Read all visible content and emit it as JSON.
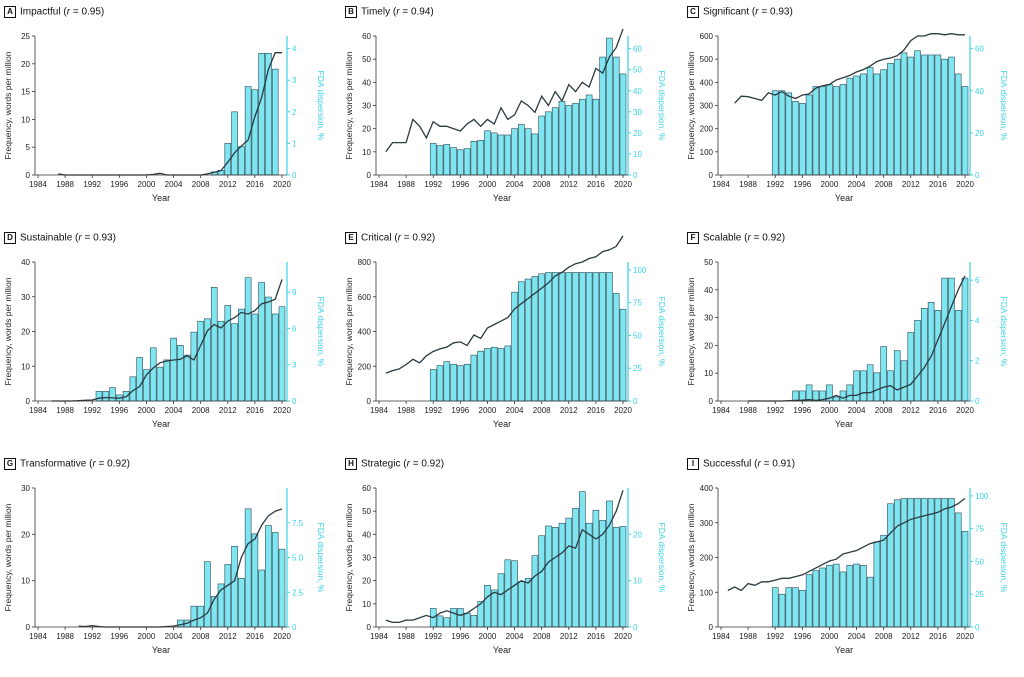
{
  "years": [
    1984,
    1985,
    1986,
    1987,
    1988,
    1989,
    1990,
    1991,
    1992,
    1993,
    1994,
    1995,
    1996,
    1997,
    1998,
    1999,
    2000,
    2001,
    2002,
    2003,
    2004,
    2005,
    2006,
    2007,
    2008,
    2009,
    2010,
    2011,
    2012,
    2013,
    2014,
    2015,
    2016,
    2017,
    2018,
    2019,
    2020
  ],
  "xticks": [
    1984,
    1988,
    1992,
    1996,
    2000,
    2004,
    2008,
    2012,
    2016,
    2020
  ],
  "xlabel": "Year",
  "ylabel": "Frequency, words per million",
  "y2label": "FDA dispersion, %",
  "colors": {
    "bar_fill": "#7fe5f0",
    "bar_stroke": "#2a4a55",
    "line": "#2b3a40",
    "axis_right": "#38d3e6",
    "axis_left": "#333333"
  },
  "chart_data": [
    {
      "type": "bar+line",
      "letter": "A",
      "word": "Impactful",
      "r_prefix": "(",
      "r_symbol": "r",
      "r_text": " = 0.95)",
      "ylim": [
        0,
        25
      ],
      "yticks": [
        0,
        5,
        10,
        15,
        20,
        25
      ],
      "y2lim": [
        0,
        4.4
      ],
      "y2ticks": [
        "0",
        "1",
        "2",
        "3",
        "4"
      ],
      "y2tickvals": [
        0,
        1,
        2,
        3,
        4
      ],
      "freq": [
        null,
        null,
        null,
        0.2,
        0,
        0,
        0,
        0,
        0,
        0,
        0,
        0,
        0,
        0,
        0,
        0,
        0,
        0.1,
        0.3,
        0,
        0,
        0,
        0,
        0,
        0,
        0.2,
        0.5,
        0.8,
        2.3,
        4,
        5.2,
        6.3,
        10.5,
        14,
        19,
        22,
        22
      ],
      "dispersion": [
        null,
        null,
        null,
        null,
        null,
        null,
        null,
        null,
        null,
        null,
        null,
        null,
        null,
        null,
        null,
        null,
        null,
        null,
        null,
        null,
        null,
        null,
        null,
        null,
        null,
        null,
        0.1,
        0.15,
        1,
        2,
        0.9,
        2.8,
        2.7,
        3.85,
        3.85,
        3.35,
        null
      ]
    },
    {
      "type": "bar+line",
      "letter": "B",
      "word": "Timely",
      "r_prefix": "(",
      "r_symbol": "r",
      "r_text": " = 0.94)",
      "ylim": [
        0,
        60
      ],
      "yticks": [
        0,
        10,
        20,
        30,
        40,
        50,
        60
      ],
      "y2lim": [
        0,
        66
      ],
      "y2ticks": [
        "0",
        "10",
        "20",
        "30",
        "40",
        "50",
        "60"
      ],
      "y2tickvals": [
        0,
        10,
        20,
        30,
        40,
        50,
        60
      ],
      "freq": [
        null,
        10,
        14,
        14,
        14,
        24,
        21,
        16,
        23,
        21,
        21,
        20,
        19,
        22,
        24,
        21,
        24,
        22,
        29,
        24,
        26,
        32,
        30,
        27,
        34,
        30,
        36,
        32,
        39,
        36,
        40,
        38,
        46,
        44,
        51,
        55,
        63
      ],
      "dispersion": [
        null,
        null,
        null,
        null,
        null,
        null,
        null,
        null,
        15,
        14,
        14.5,
        13,
        12,
        12.5,
        16,
        16.5,
        21,
        20,
        19,
        19,
        22,
        24,
        22,
        19.5,
        28,
        30,
        32,
        35,
        33,
        34,
        36,
        38,
        36,
        56,
        65,
        56,
        48
      ]
    },
    {
      "type": "bar+line",
      "letter": "C",
      "word": "Significant",
      "r_prefix": "(",
      "r_symbol": "r",
      "r_text": " = 0.93)",
      "ylim": [
        0,
        600
      ],
      "yticks": [
        0,
        100,
        200,
        300,
        400,
        500,
        600
      ],
      "y2lim": [
        0,
        66
      ],
      "y2ticks": [
        "0",
        "20",
        "40",
        "60"
      ],
      "y2tickvals": [
        0,
        20,
        40,
        60
      ],
      "freq": [
        null,
        null,
        310,
        340,
        338,
        330,
        322,
        355,
        345,
        360,
        340,
        330,
        345,
        350,
        375,
        385,
        390,
        410,
        420,
        430,
        445,
        455,
        470,
        490,
        500,
        505,
        515,
        540,
        580,
        600,
        600,
        610,
        610,
        605,
        610,
        605,
        605
      ],
      "dispersion": [
        null,
        null,
        null,
        null,
        null,
        null,
        null,
        null,
        40,
        40,
        39,
        35,
        34,
        38,
        42,
        42,
        43,
        42,
        43,
        46,
        47,
        48,
        51,
        48,
        50,
        53,
        55,
        58,
        56,
        59,
        57,
        57,
        57,
        55,
        56,
        48,
        42
      ]
    },
    {
      "type": "bar+line",
      "letter": "D",
      "word": "Sustainable",
      "r_prefix": "(",
      "r_symbol": "r",
      "r_text": " = 0.93)",
      "ylim": [
        0,
        40
      ],
      "yticks": [
        0,
        10,
        20,
        30,
        40
      ],
      "y2lim": [
        0,
        11.5
      ],
      "y2ticks": [
        "0",
        "3",
        "6",
        "9"
      ],
      "y2tickvals": [
        0,
        3,
        6,
        9
      ],
      "freq": [
        null,
        null,
        0,
        0,
        0,
        0,
        0.1,
        0.2,
        0.3,
        0.8,
        1,
        0.9,
        0.8,
        1.2,
        3,
        4.2,
        7.5,
        9.5,
        11,
        11.5,
        11.8,
        12,
        13,
        11.8,
        16,
        20.2,
        22,
        21,
        23,
        24,
        25.5,
        25,
        26,
        28,
        28.5,
        29.3,
        35
      ],
      "dispersion": [
        null,
        null,
        null,
        null,
        null,
        null,
        null,
        null,
        null,
        0.8,
        0.8,
        1.1,
        0.5,
        0.8,
        2,
        3.6,
        2.6,
        4.4,
        2.8,
        3.4,
        5.2,
        4.6,
        3.8,
        5.7,
        6.6,
        6.8,
        9.4,
        6.6,
        7.9,
        6.4,
        7.6,
        10.2,
        7.2,
        9.8,
        8.6,
        7.2,
        7.8
      ]
    },
    {
      "type": "bar+line",
      "letter": "E",
      "word": "Critical",
      "r_prefix": "(",
      "r_symbol": "r",
      "r_text": " = 0.92)",
      "ylim": [
        0,
        800
      ],
      "yticks": [
        0,
        200,
        400,
        600,
        800
      ],
      "y2lim": [
        0,
        106
      ],
      "y2ticks": [
        "0",
        "25",
        "50",
        "75",
        "100"
      ],
      "y2tickvals": [
        0,
        25,
        50,
        75,
        100
      ],
      "freq": [
        null,
        160,
        175,
        185,
        210,
        240,
        220,
        260,
        285,
        300,
        310,
        335,
        340,
        320,
        380,
        360,
        420,
        440,
        460,
        480,
        530,
        560,
        590,
        620,
        650,
        680,
        720,
        740,
        770,
        790,
        800,
        820,
        830,
        860,
        870,
        890,
        950
      ],
      "dispersion": [
        null,
        null,
        null,
        null,
        null,
        null,
        null,
        null,
        24,
        27,
        30,
        28,
        27,
        28,
        35,
        38,
        40,
        41,
        40,
        42,
        83,
        91,
        93,
        95,
        97,
        98,
        98,
        98,
        98,
        98,
        98,
        98,
        98,
        98,
        98,
        82,
        70
      ]
    },
    {
      "type": "bar+line",
      "letter": "F",
      "word": "Scalable",
      "r_prefix": "(",
      "r_symbol": "r",
      "r_text": " = 0.92)",
      "ylim": [
        0,
        50
      ],
      "yticks": [
        0,
        10,
        20,
        30,
        40,
        50
      ],
      "y2lim": [
        0,
        6.9
      ],
      "y2ticks": [
        "0",
        "2",
        "4",
        "6"
      ],
      "y2tickvals": [
        0,
        2,
        4,
        6
      ],
      "freq": [
        null,
        null,
        null,
        null,
        0,
        0,
        0,
        0,
        0,
        0,
        0.1,
        0.2,
        0.3,
        0.5,
        0.2,
        0.5,
        1,
        2,
        1,
        2,
        2,
        3,
        3,
        4,
        5,
        5.5,
        4,
        5,
        6,
        9,
        12,
        16,
        22,
        28,
        34,
        40,
        45
      ],
      "dispersion": [
        null,
        null,
        null,
        null,
        null,
        null,
        null,
        null,
        null,
        null,
        null,
        0.5,
        0.5,
        0.8,
        0.5,
        0.5,
        0.8,
        0.2,
        0.5,
        0.8,
        1.5,
        1.5,
        1.8,
        1.4,
        2.7,
        1.5,
        2.5,
        2,
        3.4,
        4,
        4.6,
        4.9,
        4.5,
        6.1,
        6.1,
        4.5,
        6.1
      ]
    },
    {
      "type": "bar+line",
      "letter": "G",
      "word": "Transformative",
      "r_prefix": "(",
      "r_symbol": "r",
      "r_text": " = 0.92)",
      "ylim": [
        0,
        30
      ],
      "yticks": [
        0,
        10,
        20,
        30
      ],
      "y2lim": [
        0,
        10
      ],
      "y2ticks": [
        "0",
        "2.5",
        "5.0",
        "7.5"
      ],
      "y2tickvals": [
        0,
        2.5,
        5,
        7.5
      ],
      "freq": [
        null,
        null,
        null,
        null,
        null,
        null,
        0.2,
        0.1,
        0.3,
        0.1,
        0,
        0,
        0,
        0,
        0,
        0,
        0,
        0,
        0,
        0.1,
        0.2,
        0.5,
        0.8,
        1.5,
        2,
        3,
        6,
        8,
        9,
        10,
        15,
        18,
        19,
        22,
        24,
        25,
        25.5
      ],
      "dispersion": [
        null,
        null,
        null,
        null,
        null,
        null,
        null,
        null,
        null,
        null,
        null,
        null,
        null,
        null,
        null,
        null,
        null,
        null,
        null,
        null,
        null,
        0.5,
        0.5,
        1.5,
        1.5,
        4.7,
        2.2,
        3.1,
        4.5,
        5.8,
        3.5,
        8.5,
        6.7,
        4.1,
        7.3,
        6.8,
        5.6
      ]
    },
    {
      "type": "bar+line",
      "letter": "H",
      "word": "Strategic",
      "r_prefix": "(",
      "r_symbol": "r",
      "r_text": " = 0.92)",
      "ylim": [
        0,
        60
      ],
      "yticks": [
        0,
        10,
        20,
        30,
        40,
        50,
        60
      ],
      "y2lim": [
        0,
        30
      ],
      "y2ticks": [
        "0",
        "10",
        "20"
      ],
      "y2tickvals": [
        0,
        10,
        20
      ],
      "freq": [
        null,
        3,
        2,
        2,
        3,
        3,
        4,
        5,
        4,
        6,
        7,
        6,
        5,
        6,
        8,
        10,
        13,
        15,
        14,
        16,
        18,
        20,
        19,
        22,
        24,
        28,
        30,
        32,
        35,
        34,
        42,
        40,
        38,
        40,
        44,
        50,
        59
      ],
      "dispersion": [
        null,
        null,
        null,
        null,
        null,
        null,
        null,
        null,
        4,
        2.4,
        2,
        4,
        4,
        3,
        2.5,
        5.5,
        9,
        8,
        11.5,
        14.5,
        14.3,
        9.8,
        10.5,
        15.4,
        19.7,
        21.8,
        21.5,
        22.4,
        23.5,
        25.6,
        29.2,
        22.4,
        25.2,
        23,
        27.2,
        21.5,
        21.7
      ]
    },
    {
      "type": "bar+line",
      "letter": "I",
      "word": "Successful",
      "r_prefix": "(",
      "r_symbol": "r",
      "r_text": " = 0.91)",
      "ylim": [
        0,
        400
      ],
      "yticks": [
        0,
        100,
        200,
        300,
        400
      ],
      "y2lim": [
        0,
        106
      ],
      "y2ticks": [
        "0",
        "25",
        "50",
        "75",
        "100"
      ],
      "y2tickvals": [
        0,
        25,
        50,
        75,
        100
      ],
      "freq": [
        null,
        105,
        115,
        105,
        125,
        120,
        130,
        130,
        135,
        140,
        140,
        145,
        150,
        160,
        170,
        180,
        190,
        195,
        210,
        215,
        220,
        230,
        240,
        245,
        250,
        270,
        290,
        300,
        310,
        315,
        320,
        325,
        330,
        340,
        345,
        355,
        370
      ],
      "dispersion": [
        null,
        null,
        null,
        null,
        null,
        null,
        null,
        null,
        30,
        25,
        30,
        30,
        28,
        40,
        43,
        45,
        47,
        48,
        42,
        47,
        48,
        47,
        38,
        65,
        70,
        94,
        97,
        98,
        98,
        98,
        98,
        98,
        98,
        98,
        98,
        87,
        73
      ]
    }
  ]
}
